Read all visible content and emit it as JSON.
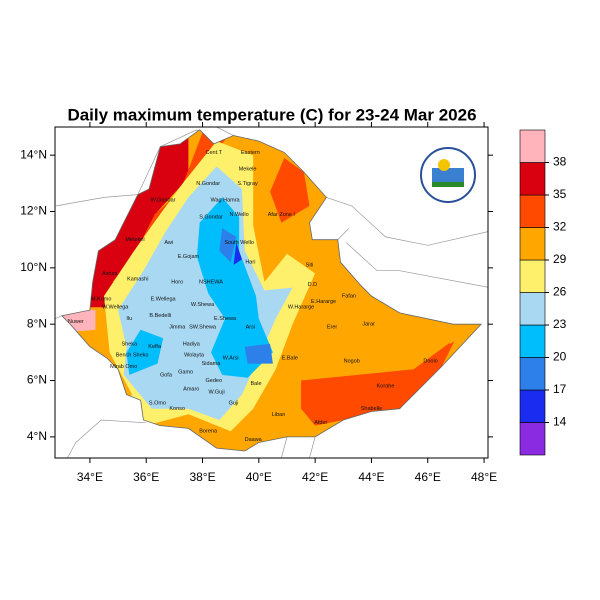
{
  "map": {
    "title": "Daily maximum temperature (C) for 23-24 Mar 2026",
    "lonlim": [
      32.76,
      48.14
    ],
    "latlim": [
      3.25,
      15.0
    ],
    "lon_ticks": [
      {
        "value": 34,
        "label": "34°E"
      },
      {
        "value": 36,
        "label": "36°E"
      },
      {
        "value": 38,
        "label": "38°E"
      },
      {
        "value": 40,
        "label": "40°E"
      },
      {
        "value": 42,
        "label": "42°E"
      },
      {
        "value": 44,
        "label": "44°E"
      },
      {
        "value": 46,
        "label": "46°E"
      },
      {
        "value": 48,
        "label": "48°E"
      }
    ],
    "lat_ticks": [
      {
        "value": 4,
        "label": "4°N"
      },
      {
        "value": 6,
        "label": "6°N"
      },
      {
        "value": 8,
        "label": "8°N"
      },
      {
        "value": 10,
        "label": "10°N"
      },
      {
        "value": 12,
        "label": "12°N"
      },
      {
        "value": 14,
        "label": "14°N"
      }
    ],
    "colorbar": {
      "levels": [
        14,
        17,
        20,
        23,
        26,
        29,
        32,
        35,
        38
      ],
      "colors": [
        "#8a2be2",
        "#1a2cf0",
        "#2d7fe9",
        "#00bdfc",
        "#a9d8f2",
        "#fff06c",
        "#ffa600",
        "#ff4a00",
        "#d9000f",
        "#ffb3ba"
      ]
    },
    "regions": [
      "Cent.T",
      "Eastern",
      "Mekele",
      "N.Gondar",
      "S.Tigray",
      "W.Gondar",
      "Wag Hamra",
      "S.Gondar",
      "N.Wello",
      "Afar Zone I",
      "Metekel",
      "Awi",
      "E.Gojam",
      "South Wello",
      "Hari",
      "Siti",
      "Asosa",
      "Kamashi",
      "Horo",
      "NSHEWA",
      "D.D",
      "M.Komo",
      "W.Wellega",
      "E.Wellega",
      "W.Shewa",
      "W.Hararge",
      "E.Hararge",
      "Fafan",
      "Nuwer",
      "B.Bedelli",
      "Jimma",
      "Ilu",
      "SW.Shewa",
      "E.Shewa",
      "Arsi",
      "Erer",
      "Jarar",
      "Sheka",
      "Keffa",
      "Bench Sheko",
      "Hadiya",
      "Wolayta",
      "Sidama",
      "W.Arsi",
      "E.Bale",
      "Nogob",
      "Doolo",
      "Mirab Omo",
      "Gofa",
      "Gamo",
      "Gedeo",
      "Bale",
      "Korahe",
      "S.Omo",
      "Amaro",
      "W.Guji",
      "Guji",
      "Shabelle",
      "Konso",
      "Liban",
      "Afder",
      "Borena",
      "Daawa"
    ]
  }
}
